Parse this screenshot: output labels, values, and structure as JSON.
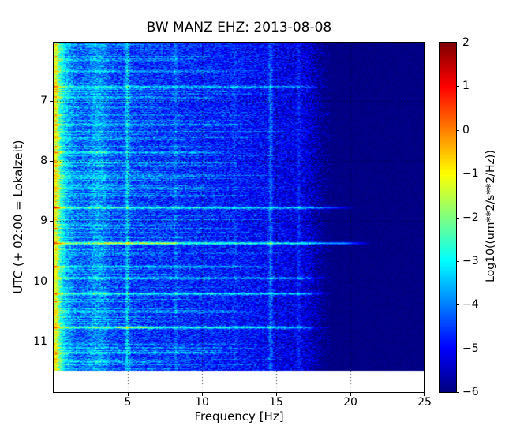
{
  "title": "BW MANZ EHZ: 2013-08-08",
  "axes": {
    "xlabel": "Frequency [Hz]",
    "ylabel": "UTC (+ 02:00 = Lokalzeit)",
    "x_ticks": [
      5,
      10,
      15,
      20,
      25
    ],
    "y_ticks": [
      7,
      8,
      9,
      10,
      11
    ],
    "x_range_hz": [
      0,
      25
    ],
    "y_range_hours": [
      6.03,
      11.84
    ],
    "grid_style": "dotted-black"
  },
  "colorbar": {
    "label": "Log10((um**2/s**2/Hz))",
    "ticks": [
      2,
      1,
      0,
      -1,
      -2,
      -3,
      -4,
      -5,
      -6
    ],
    "clim": [
      -6,
      2
    ],
    "colormap": "jet"
  },
  "colors": {
    "background": "#ffffff",
    "axes": "#000000",
    "colorbar_top": "#800000",
    "colorbar_bottom": "#000080",
    "noise_floor_blue": "#0033ff",
    "event_streak_cyan": "#00bfff"
  },
  "chart_data": {
    "type": "heatmap",
    "subtype": "spectrogram",
    "title": "BW MANZ EHZ: 2013-08-08",
    "xlabel": "Frequency [Hz]",
    "ylabel": "UTC (+ 02:00 = Lokalzeit)",
    "value_scale": "Log10((um**2/s**2/Hz))",
    "value_range": [
      -6,
      2
    ],
    "colormap": "jet",
    "x_range_hz": [
      0,
      25
    ],
    "time_range_utc_hours": [
      6.03,
      11.84
    ],
    "data_time_end_utc_hours": 11.48,
    "lowpass_cutoff_hz": 17.6,
    "microseism_band": {
      "band_hz": [
        0,
        1.2
      ],
      "peak_level": -1.3
    },
    "background_noise_profile": [
      [
        0,
        -1.2
      ],
      [
        0.15,
        -1.3
      ],
      [
        0.4,
        -2.6
      ],
      [
        0.8,
        -3.6
      ],
      [
        1.5,
        -4.25
      ],
      [
        3,
        -4.45
      ],
      [
        6,
        -4.6
      ],
      [
        10,
        -4.75
      ],
      [
        14,
        -5.0
      ],
      [
        17,
        -5.3
      ],
      [
        18.5,
        -5.95
      ],
      [
        25,
        -6.0
      ]
    ],
    "persistent_lines_hz": [
      {
        "hz": 3.0,
        "strength": 0.55,
        "width_hz": 0.45
      },
      {
        "hz": 4.95,
        "strength": 1.0,
        "width_hz": 0.1
      },
      {
        "hz": 8.2,
        "strength": 0.4,
        "width_hz": 0.09
      },
      {
        "hz": 12.2,
        "strength": 0.25,
        "width_hz": 0.09
      },
      {
        "hz": 14.6,
        "strength": 0.85,
        "width_hz": 0.1
      },
      {
        "hz": 16.5,
        "strength": 0.45,
        "width_hz": 0.1
      }
    ],
    "events": [
      {
        "t": 6.3,
        "amp": 0.6,
        "fmax": 10
      },
      {
        "t": 6.5,
        "amp": 0.8,
        "fmax": 13
      },
      {
        "t": 6.76,
        "amp": 1.3,
        "fmax": 18.5
      },
      {
        "t": 7.1,
        "amp": 0.5,
        "fmax": 9
      },
      {
        "t": 7.39,
        "amp": 1.0,
        "fmax": 14
      },
      {
        "t": 7.63,
        "amp": 0.6,
        "fmax": 10
      },
      {
        "t": 7.85,
        "amp": 1.1,
        "fmax": 12,
        "blob": [
          1.5,
          4,
          0.5
        ]
      },
      {
        "t": 8.02,
        "amp": 0.9,
        "fmax": 13
      },
      {
        "t": 8.27,
        "amp": 0.6,
        "fmax": 10
      },
      {
        "t": 8.44,
        "amp": 0.8,
        "fmax": 12
      },
      {
        "t": 8.57,
        "amp": 0.7,
        "fmax": 11
      },
      {
        "t": 8.77,
        "amp": 1.8,
        "fmax": 20.5
      },
      {
        "t": 9.06,
        "amp": 0.6,
        "fmax": 9
      },
      {
        "t": 9.36,
        "amp": 2.4,
        "fmax": 21.5,
        "blob": [
          3,
          8.5,
          0.8
        ]
      },
      {
        "t": 9.54,
        "amp": 0.5,
        "fmax": 8
      },
      {
        "t": 9.75,
        "amp": 1.2,
        "fmax": 15
      },
      {
        "t": 9.94,
        "amp": 1.4,
        "fmax": 19
      },
      {
        "t": 10.2,
        "amp": 1.7,
        "fmax": 19
      },
      {
        "t": 10.5,
        "amp": 1.0,
        "fmax": 14
      },
      {
        "t": 10.76,
        "amp": 1.9,
        "fmax": 18.5,
        "blob": [
          3.8,
          7,
          1.0
        ]
      },
      {
        "t": 11.18,
        "amp": 1.2,
        "fmax": 13
      },
      {
        "t": 11.33,
        "amp": 0.9,
        "fmax": 9
      }
    ]
  }
}
